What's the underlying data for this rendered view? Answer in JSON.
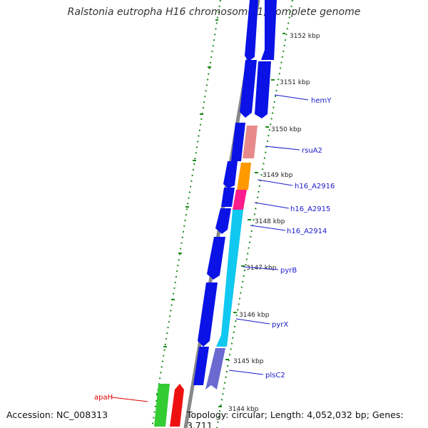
{
  "title": "Ralstonia eutropha H16 chromosome 1, complete genome",
  "accession": "Accession: NC_008313",
  "topology_info": "Topology: circular; Length: 4,052,032 bp; Genes: 3,711",
  "colors": {
    "backbone": "#888888",
    "tick": "#1a8a1a",
    "gene_default": "#0a12e6",
    "label": "#1a1acc",
    "label_red": "#dd0000",
    "rsuA2": "#e88a8a",
    "h16_A2916": "#ff9900",
    "h16_A2915": "#ff1c8c",
    "pyr": "#10c8f0",
    "plsC2": "#6a6ad0",
    "apaH_green": "#33cc33",
    "apaH_red": "#ee1111"
  },
  "scale_labels": [
    "3152 kbp",
    "3151 kbp",
    "3150 kbp",
    "3149 kbp",
    "3148 kbp",
    "3147 kbp",
    "3146 kbp",
    "3145 kbp",
    "3144 kbp"
  ],
  "gene_labels": [
    "hemY",
    "rsuA2",
    "h16_A2916",
    "h16_A2915",
    "h16_A2914",
    "pyrB",
    "pyrX",
    "plsC2",
    "apaH"
  ]
}
